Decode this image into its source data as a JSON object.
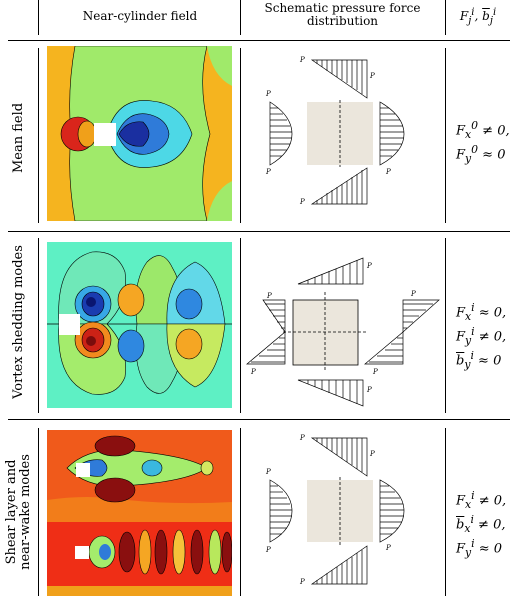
{
  "header": {
    "col1": "Near-cylinder field",
    "col2_line1": "Schematic pressure force",
    "col2_line2": "distribution",
    "col3": "F_j^i, b_j^i"
  },
  "rows": [
    {
      "label_line1": "Mean field",
      "label_line2": "",
      "eq": [
        "F_x^0 ≠ 0,",
        "F_y^0 ≈ 0"
      ]
    },
    {
      "label_line1": "Vortex shedding modes",
      "label_line2": "",
      "eq": [
        "F_x^i ≈ 0,",
        "F_y^i ≠ 0,",
        "b_y^i ≈ 0"
      ]
    },
    {
      "label_line1": "Shear layer and",
      "label_line2": "near-wake modes",
      "eq": [
        "F_x^i ≠ 0,",
        "b_x^i ≠ 0,",
        "F_y^i ≈ 0"
      ]
    }
  ],
  "pressure_labels": [
    "P_1",
    "P_2",
    "P_3",
    "P_4",
    "P_5",
    "P_6"
  ]
}
